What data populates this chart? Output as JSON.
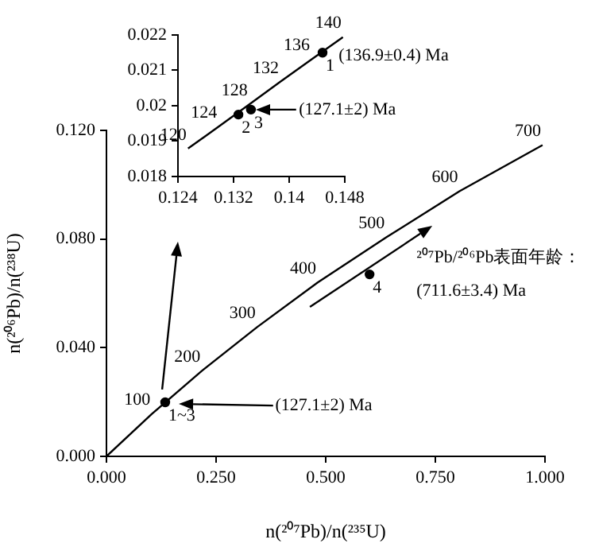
{
  "chart_data": [
    {
      "type": "line",
      "xlabel": "n(²⁰⁷Pb)/n(²³⁵U)",
      "ylabel": "n(²⁰⁶Pb)/n(²³⁸U)",
      "xlim": [
        0,
        1
      ],
      "xticks": [
        {
          "value": 0,
          "label": "0.000"
        },
        {
          "value": 0.25,
          "label": "0.250"
        },
        {
          "value": 0.5,
          "label": "0.500"
        },
        {
          "value": 0.75,
          "label": "0.750"
        },
        {
          "value": 1,
          "label": "1.000"
        }
      ],
      "ylim": [
        0,
        0.12
      ],
      "yticks": [
        {
          "value": 0,
          "label": "0.000"
        },
        {
          "value": 0.04,
          "label": "0.040"
        },
        {
          "value": 0.08,
          "label": "0.080"
        },
        {
          "value": 0.12,
          "label": "0.120"
        }
      ],
      "grid": false,
      "legend": false,
      "series": [
        {
          "type": "line",
          "color": "#000000",
          "marker": "none",
          "x": [
            0,
            0.1035,
            0.2177,
            0.3437,
            0.4818,
            0.638,
            0.8051,
            0.9944
          ],
          "values": [
            0,
            0.0156,
            0.0315,
            0.0476,
            0.064,
            0.0806,
            0.0976,
            0.1146
          ]
        },
        {
          "type": "scatter",
          "color": "#000000",
          "marker": "circle",
          "x": [
            0.134,
            0.6
          ],
          "values": [
            0.0199,
            0.067
          ]
        }
      ],
      "annotations": [
        "(127.1±2) Ma",
        "²⁰⁷Pb/²⁰⁶Pb表面年龄：",
        "(711.6±3.4) Ma",
        {
          "text": "100",
          "x": 0.1035,
          "y": 0.0156
        },
        {
          "text": "200",
          "x": 0.2177,
          "y": 0.0315
        },
        {
          "text": "300",
          "x": 0.3437,
          "y": 0.0476
        },
        {
          "text": "400",
          "x": 0.4818,
          "y": 0.064
        },
        {
          "text": "500",
          "x": 0.638,
          "y": 0.0806
        },
        {
          "text": "600",
          "x": 0.8051,
          "y": 0.0976
        },
        {
          "text": "700",
          "x": 0.9944,
          "y": 0.1146
        },
        {
          "text": "1~3",
          "x": 0.134,
          "y": 0.0199
        },
        {
          "text": "4",
          "x": 0.6,
          "y": 0.067
        }
      ]
    },
    {
      "type": "line",
      "xlim": [
        0.124,
        0.148
      ],
      "xticks": [
        0.124,
        0.132,
        0.14,
        0.148
      ],
      "ylim": [
        0.018,
        0.022
      ],
      "yticks": [
        0.018,
        0.019,
        0.02,
        0.021,
        0.022
      ],
      "grid": false,
      "legend": false,
      "series": [
        {
          "type": "line",
          "color": "#000000",
          "marker": "none",
          "x": [
            0.12545,
            0.12985,
            0.13427,
            0.13873,
            0.14321,
            0.14773
          ],
          "values": [
            0.01879,
            0.01941,
            0.02004,
            0.02068,
            0.02131,
            0.02194
          ]
        },
        {
          "type": "scatter",
          "color": "#000000",
          "marker": "circle",
          "x": [
            0.1448,
            0.1327,
            0.1345
          ],
          "values": [
            0.0215,
            0.01975,
            0.01989
          ]
        }
      ],
      "annotations": [
        "(136.9±0.4) Ma",
        "(127.1±2) Ma",
        {
          "text": "120",
          "x": 0.12545,
          "y": 0.01879
        },
        {
          "text": "124",
          "x": 0.12985,
          "y": 0.01941
        },
        {
          "text": "128",
          "x": 0.13427,
          "y": 0.02004
        },
        {
          "text": "132",
          "x": 0.13873,
          "y": 0.02068
        },
        {
          "text": "136",
          "x": 0.14321,
          "y": 0.02131
        },
        {
          "text": "140",
          "x": 0.14773,
          "y": 0.02194
        },
        {
          "text": "1",
          "x": 0.1448,
          "y": 0.0215
        },
        {
          "text": "2",
          "x": 0.1327,
          "y": 0.01975
        },
        {
          "text": "3",
          "x": 0.1345,
          "y": 0.01989
        }
      ]
    }
  ]
}
